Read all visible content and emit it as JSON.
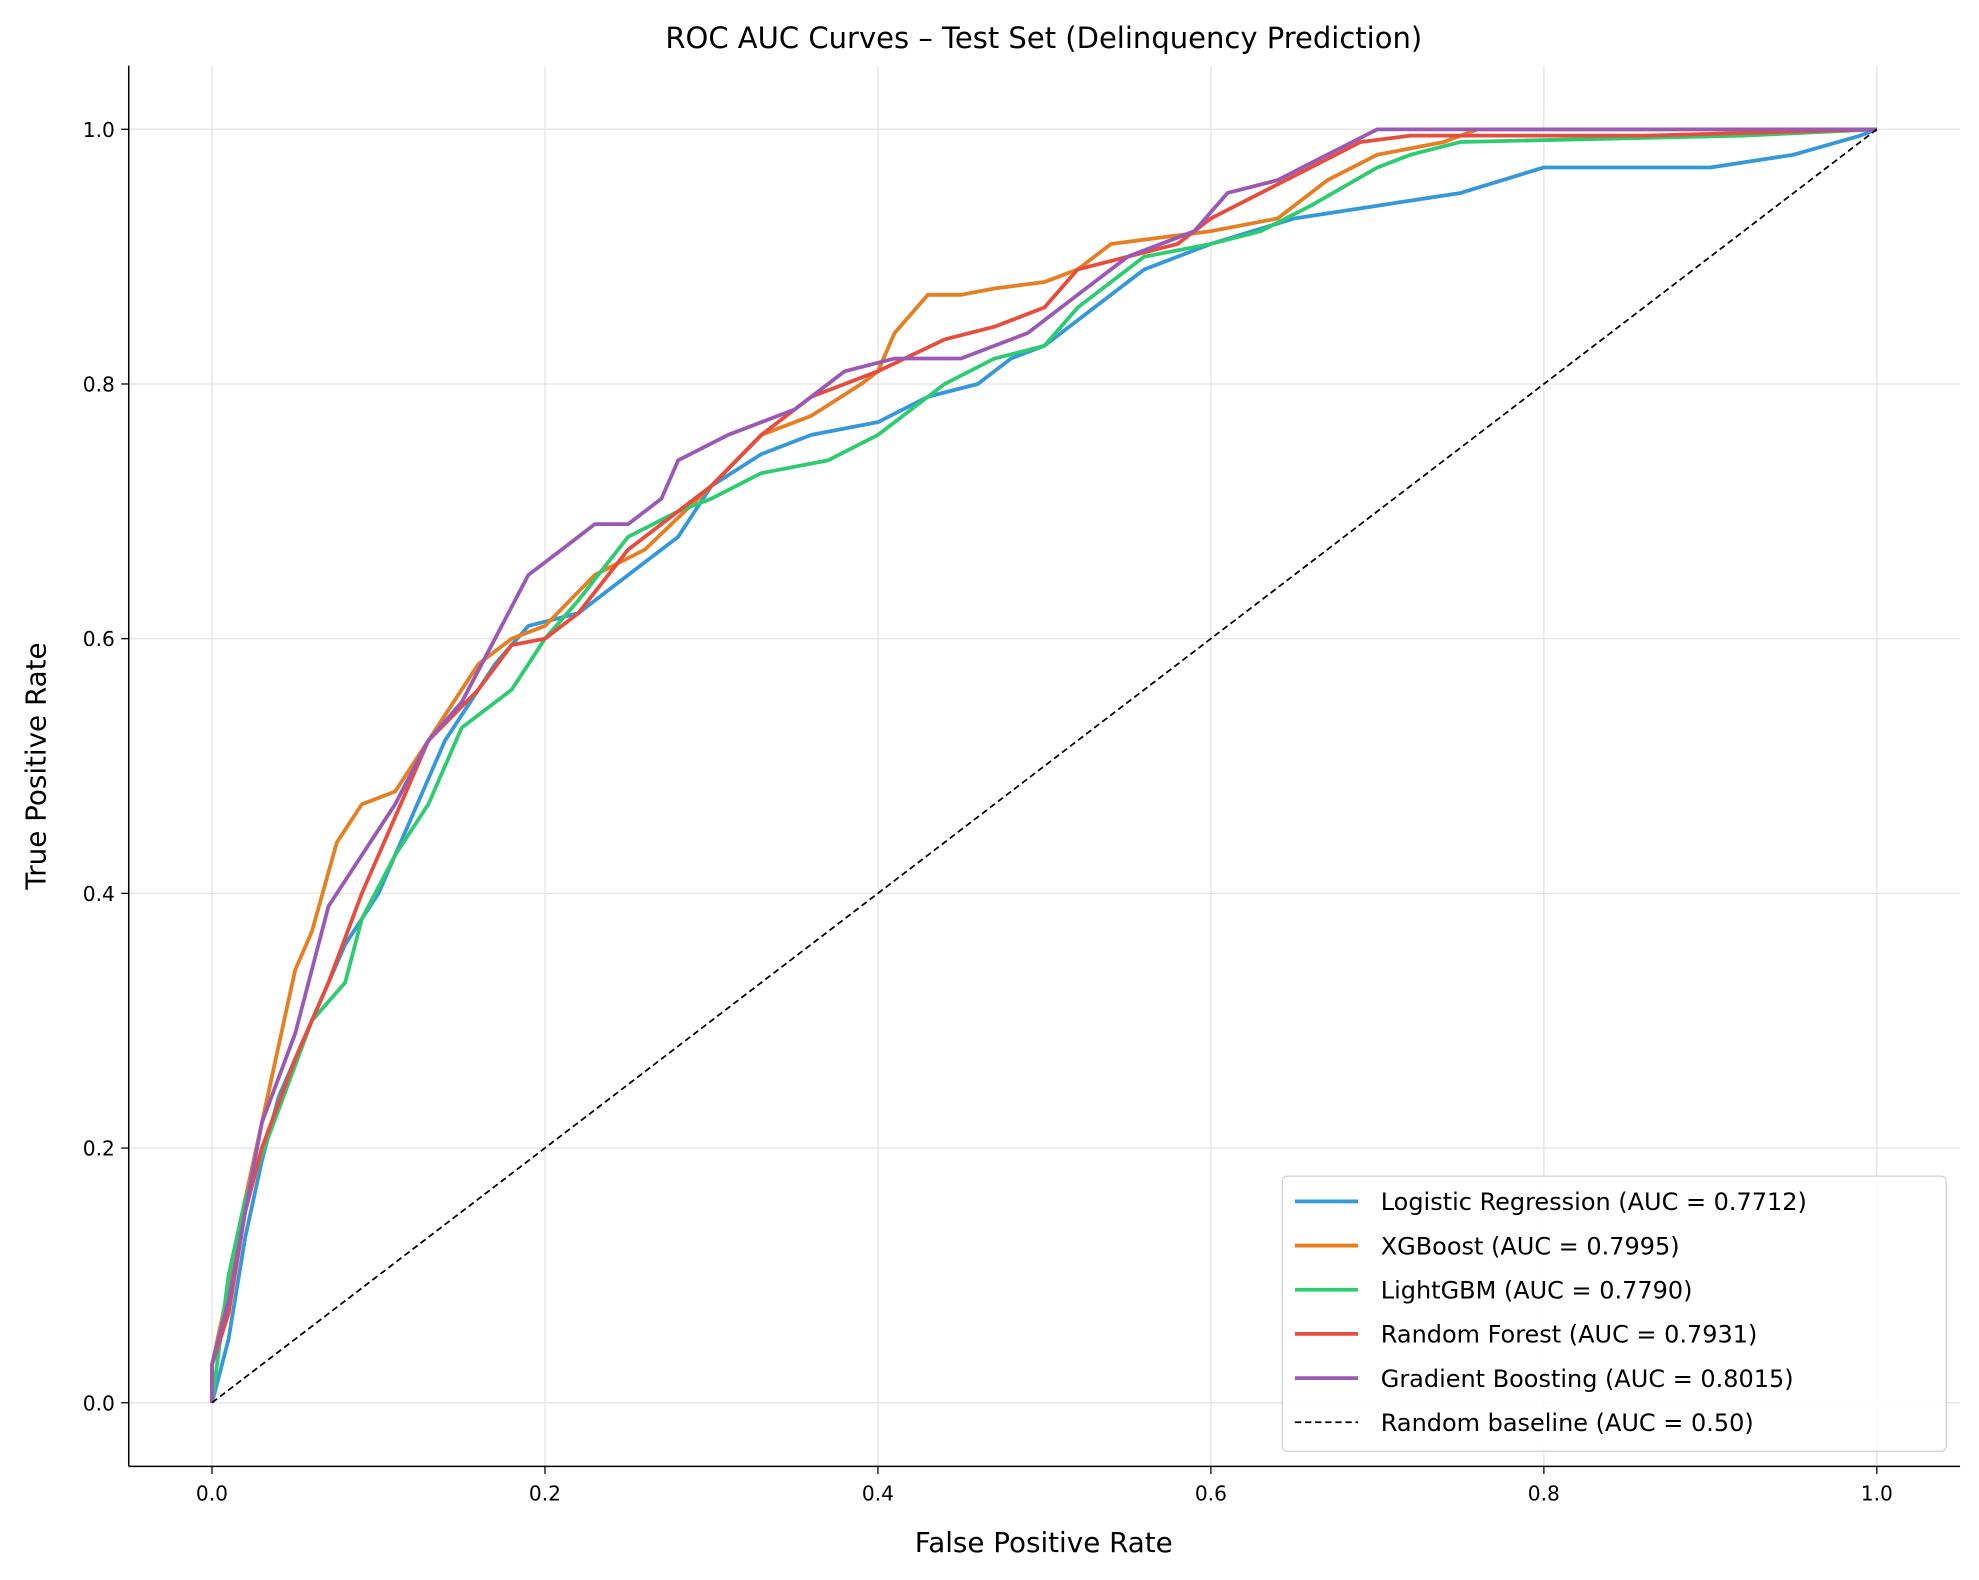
{
  "chart_data": {
    "type": "line",
    "title": "ROC AUC Curves – Test Set (Delinquency Prediction)",
    "xlabel": "False Positive Rate",
    "ylabel": "True Positive Rate",
    "xlim": [
      -0.05,
      1.05
    ],
    "ylim": [
      -0.05,
      1.05
    ],
    "xticks": [
      "0.0",
      "0.2",
      "0.4",
      "0.6",
      "0.8",
      "1.0"
    ],
    "yticks": [
      "0.0",
      "0.2",
      "0.4",
      "0.6",
      "0.8",
      "1.0"
    ],
    "grid": true,
    "legend_position": "lower-right",
    "series": [
      {
        "name": "Logistic Regression  (AUC = 0.7712)",
        "color": "#3498db",
        "x": [
          0,
          0.01,
          0.02,
          0.03,
          0.04,
          0.06,
          0.08,
          0.1,
          0.12,
          0.14,
          0.17,
          0.19,
          0.22,
          0.25,
          0.28,
          0.3,
          0.33,
          0.36,
          0.4,
          0.43,
          0.46,
          0.48,
          0.5,
          0.52,
          0.54,
          0.56,
          0.6,
          0.65,
          0.7,
          0.75,
          0.8,
          0.9,
          0.95,
          0.99,
          1
        ],
        "y": [
          0,
          0.05,
          0.13,
          0.19,
          0.24,
          0.3,
          0.36,
          0.4,
          0.46,
          0.52,
          0.58,
          0.61,
          0.62,
          0.65,
          0.68,
          0.72,
          0.745,
          0.76,
          0.77,
          0.79,
          0.8,
          0.82,
          0.83,
          0.85,
          0.87,
          0.89,
          0.91,
          0.93,
          0.94,
          0.95,
          0.97,
          0.97,
          0.98,
          0.995,
          1
        ]
      },
      {
        "name": "XGBoost  (AUC = 0.7995)",
        "color": "#e67e22",
        "x": [
          0,
          0,
          0.01,
          0.02,
          0.04,
          0.05,
          0.06,
          0.075,
          0.09,
          0.11,
          0.13,
          0.16,
          0.18,
          0.2,
          0.23,
          0.26,
          0.3,
          0.33,
          0.36,
          0.39,
          0.4,
          0.41,
          0.43,
          0.45,
          0.47,
          0.5,
          0.52,
          0.54,
          0.57,
          0.6,
          0.64,
          0.67,
          0.7,
          0.74,
          0.76,
          1
        ],
        "y": [
          0,
          0.03,
          0.09,
          0.16,
          0.28,
          0.34,
          0.37,
          0.44,
          0.47,
          0.48,
          0.52,
          0.58,
          0.6,
          0.61,
          0.65,
          0.67,
          0.72,
          0.76,
          0.775,
          0.8,
          0.81,
          0.84,
          0.87,
          0.87,
          0.875,
          0.88,
          0.89,
          0.91,
          0.915,
          0.92,
          0.93,
          0.96,
          0.98,
          0.99,
          1,
          1
        ]
      },
      {
        "name": "LightGBM  (AUC = 0.7790)",
        "color": "#2ecc71",
        "x": [
          0,
          0.01,
          0.02,
          0.04,
          0.06,
          0.08,
          0.09,
          0.11,
          0.13,
          0.15,
          0.18,
          0.2,
          0.22,
          0.25,
          0.28,
          0.3,
          0.33,
          0.37,
          0.4,
          0.42,
          0.44,
          0.47,
          0.5,
          0.52,
          0.54,
          0.56,
          0.6,
          0.63,
          0.66,
          0.7,
          0.72,
          0.75,
          0.92,
          1
        ],
        "y": [
          0,
          0.1,
          0.16,
          0.23,
          0.3,
          0.33,
          0.38,
          0.43,
          0.47,
          0.53,
          0.56,
          0.6,
          0.63,
          0.68,
          0.7,
          0.71,
          0.73,
          0.74,
          0.76,
          0.78,
          0.8,
          0.82,
          0.83,
          0.86,
          0.88,
          0.9,
          0.91,
          0.92,
          0.94,
          0.97,
          0.98,
          0.99,
          0.995,
          1
        ]
      },
      {
        "name": "Random Forest  (AUC = 0.7931)",
        "color": "#e74c3c",
        "x": [
          0,
          0,
          0.01,
          0.02,
          0.03,
          0.05,
          0.07,
          0.09,
          0.11,
          0.13,
          0.16,
          0.18,
          0.2,
          0.22,
          0.25,
          0.28,
          0.3,
          0.33,
          0.36,
          0.4,
          0.44,
          0.47,
          0.5,
          0.52,
          0.55,
          0.58,
          0.6,
          0.63,
          0.66,
          0.69,
          0.72,
          0.86,
          1
        ],
        "y": [
          0,
          0.03,
          0.07,
          0.15,
          0.2,
          0.27,
          0.33,
          0.4,
          0.46,
          0.52,
          0.56,
          0.595,
          0.6,
          0.62,
          0.67,
          0.7,
          0.72,
          0.76,
          0.79,
          0.81,
          0.835,
          0.845,
          0.86,
          0.89,
          0.9,
          0.91,
          0.93,
          0.95,
          0.97,
          0.99,
          0.995,
          0.995,
          1
        ]
      },
      {
        "name": "Gradient Boosting  (AUC = 0.8015)",
        "color": "#9b59b6",
        "x": [
          0,
          0,
          0.01,
          0.02,
          0.03,
          0.05,
          0.07,
          0.09,
          0.11,
          0.13,
          0.15,
          0.17,
          0.19,
          0.21,
          0.23,
          0.25,
          0.27,
          0.28,
          0.31,
          0.35,
          0.38,
          0.41,
          0.45,
          0.49,
          0.52,
          0.55,
          0.59,
          0.61,
          0.64,
          0.67,
          0.7,
          1
        ],
        "y": [
          0,
          0.03,
          0.08,
          0.15,
          0.22,
          0.29,
          0.39,
          0.43,
          0.47,
          0.52,
          0.55,
          0.6,
          0.65,
          0.67,
          0.69,
          0.69,
          0.71,
          0.74,
          0.76,
          0.78,
          0.81,
          0.82,
          0.82,
          0.84,
          0.87,
          0.9,
          0.92,
          0.95,
          0.96,
          0.98,
          1,
          1
        ]
      },
      {
        "name": "Random baseline (AUC = 0.50)",
        "color": "#000000",
        "dashed": true,
        "x": [
          0,
          1
        ],
        "y": [
          0,
          1
        ]
      }
    ]
  }
}
